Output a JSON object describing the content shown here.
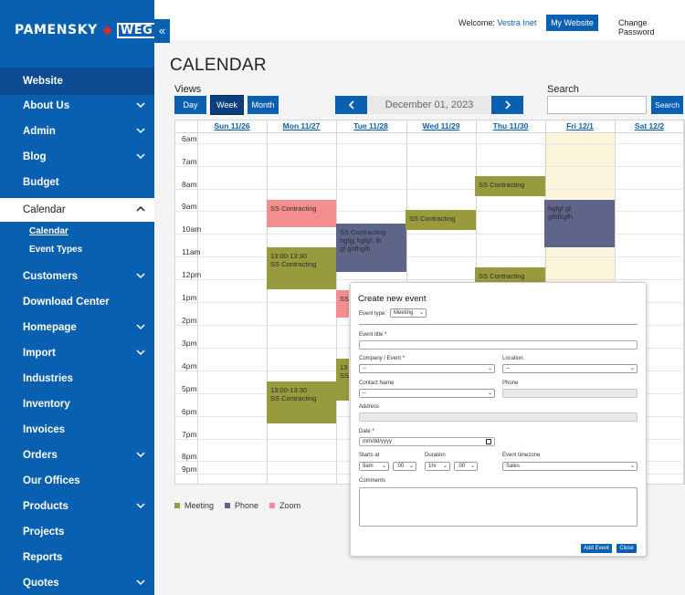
{
  "sidebar": {
    "logo": {
      "brand": "PAMENSKY",
      "partner": "WEG"
    },
    "collapse_icon": "«",
    "website_label": "Website",
    "items": [
      {
        "label": "About Us",
        "has_chevron": true
      },
      {
        "label": "Admin",
        "has_chevron": true
      },
      {
        "label": "Blog",
        "has_chevron": true
      },
      {
        "label": "Budget",
        "has_chevron": false
      },
      {
        "label": "Calendar",
        "has_chevron": true,
        "expanded": true
      },
      {
        "label": "Customers",
        "has_chevron": true
      },
      {
        "label": "Download Center",
        "has_chevron": false
      },
      {
        "label": "Homepage",
        "has_chevron": true
      },
      {
        "label": "Import",
        "has_chevron": true
      },
      {
        "label": "Industries",
        "has_chevron": false
      },
      {
        "label": "Inventory",
        "has_chevron": false
      },
      {
        "label": "Invoices",
        "has_chevron": false
      },
      {
        "label": "Orders",
        "has_chevron": true
      },
      {
        "label": "Our Offices",
        "has_chevron": false
      },
      {
        "label": "Products",
        "has_chevron": true
      },
      {
        "label": "Projects",
        "has_chevron": false
      },
      {
        "label": "Reports",
        "has_chevron": false
      },
      {
        "label": "Quotes",
        "has_chevron": true
      }
    ],
    "calendar_sub": [
      "Calendar",
      "Event Types"
    ]
  },
  "topbar": {
    "welcome_prefix": "Welcome:",
    "username": "Vestra Inet",
    "my_website": "My Website",
    "change_password": "Change Password"
  },
  "page": {
    "title": "CALENDAR",
    "views_label": "Views",
    "views": [
      "Day",
      "Week",
      "Month"
    ],
    "selected_view": "Week",
    "current_date": "December 01, 2023",
    "search_label": "Search",
    "search_placeholder": "",
    "search_button": "Search"
  },
  "calendar": {
    "days": [
      "Sun 11/26",
      "Mon 11/27",
      "Tue 11/28",
      "Wed 11/29",
      "Thu 11/30",
      "Fri 12/1",
      "Sat 12/2"
    ],
    "today_index": 5,
    "times": [
      "6am",
      "7am",
      "8am",
      "9am",
      "10am",
      "11am",
      "12pm",
      "1pm",
      "2pm",
      "3pm",
      "4pm",
      "5pm",
      "6pm",
      "7pm",
      "8pm",
      "9pm"
    ],
    "events": [
      {
        "day": 1,
        "type": "zoom",
        "text": "SS Contracting"
      },
      {
        "day": 1,
        "type": "meeting",
        "text": "13:00-13:30\nSS Contracting"
      },
      {
        "day": 1,
        "type": "meeting",
        "text": "13:00-13:30\nSS Contracting"
      },
      {
        "day": 2,
        "type": "phone",
        "text": "SS Contracting\nhgfgj hgfgf. ffr\ngf ghfhgfh"
      },
      {
        "day": 2,
        "type": "zoom",
        "text": "SS"
      },
      {
        "day": 2,
        "type": "meeting",
        "text": "13\nSS"
      },
      {
        "day": 3,
        "type": "meeting",
        "text": "SS Contracting"
      },
      {
        "day": 4,
        "type": "meeting",
        "text": "SS Contracting"
      },
      {
        "day": 4,
        "type": "meeting",
        "text": "SS Contracting"
      },
      {
        "day": 5,
        "type": "phone",
        "text": "hgfgf gf\ngfhfhgfh"
      }
    ],
    "colors": {
      "meeting": "#979a3d",
      "phone": "#5e6589",
      "zoom": "#f58f8f"
    }
  },
  "legend": [
    {
      "label": "Meeting",
      "color": "#979a3d"
    },
    {
      "label": "Phone",
      "color": "#5e6589"
    },
    {
      "label": "Zoom",
      "color": "#f58f8f"
    }
  ],
  "modal": {
    "title": "Create new event",
    "event_type_label": "Event type:",
    "event_type_value": "Meeting",
    "event_title_label": "Event title *",
    "company_label": "Company / Event *",
    "company_value": "--",
    "location_label": "Location",
    "location_value": "--",
    "contact_label": "Contact Name",
    "contact_value": "--",
    "phone_label": "Phone",
    "address_label": "Address",
    "date_label": "Date *",
    "date_placeholder": "mm/dd/yyyy",
    "starts_label": "Starts at",
    "starts_hour": "9am",
    "starts_min": ":00",
    "duration_label": "Duration",
    "duration_hour": "1hr",
    "duration_min": ":00",
    "timezone_label": "Event timezone",
    "timezone_value": "Sales",
    "comments_label": "Comments",
    "add_button": "Add Event",
    "close_button": "Close"
  }
}
